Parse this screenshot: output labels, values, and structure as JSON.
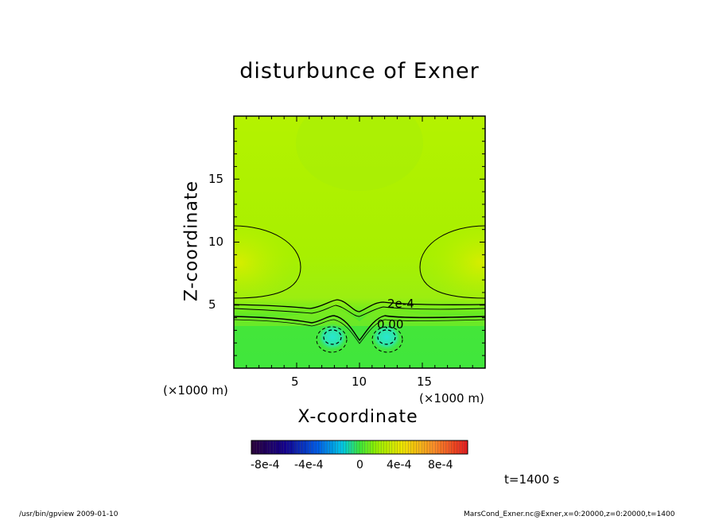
{
  "chart_data": {
    "type": "heatmap",
    "title": "disturbunce of Exner",
    "xlabel": "X-coordinate",
    "ylabel": "Z-coordinate",
    "x_unit": "(×1000 m)",
    "y_unit": "(×1000 m)",
    "xlim": [
      0,
      20
    ],
    "ylim": [
      0,
      20
    ],
    "x_ticks": [
      5,
      10,
      15
    ],
    "y_ticks": [
      5,
      10,
      15
    ],
    "x_tick_labels": [
      "5",
      "10",
      "15"
    ],
    "y_tick_labels": [
      "5",
      "10",
      "15"
    ],
    "contours": [
      {
        "label": "2e-4",
        "level": 0.0002
      },
      {
        "label": "0.00",
        "level": 0.0
      }
    ],
    "colorbar": {
      "range": [
        -0.001,
        0.001
      ],
      "tick_labels": [
        "-8e-4",
        "-4e-4",
        "0",
        "4e-4",
        "8e-4"
      ],
      "tick_values": [
        -0.0008,
        -0.0004,
        0,
        0.0004,
        0.0008
      ]
    },
    "time_label": "t=1400 s"
  },
  "footer": {
    "left": "/usr/bin/gpview  2009-01-10",
    "right": "MarsCond_Exner.nc@Exner,x=0:20000,z=0:20000,t=1400"
  },
  "colors": {
    "upper_field": "#b4f200",
    "lower_field": "#3ce63c",
    "high_pocket": "#d2ee00",
    "low_pocket": "#2ee6c8"
  }
}
